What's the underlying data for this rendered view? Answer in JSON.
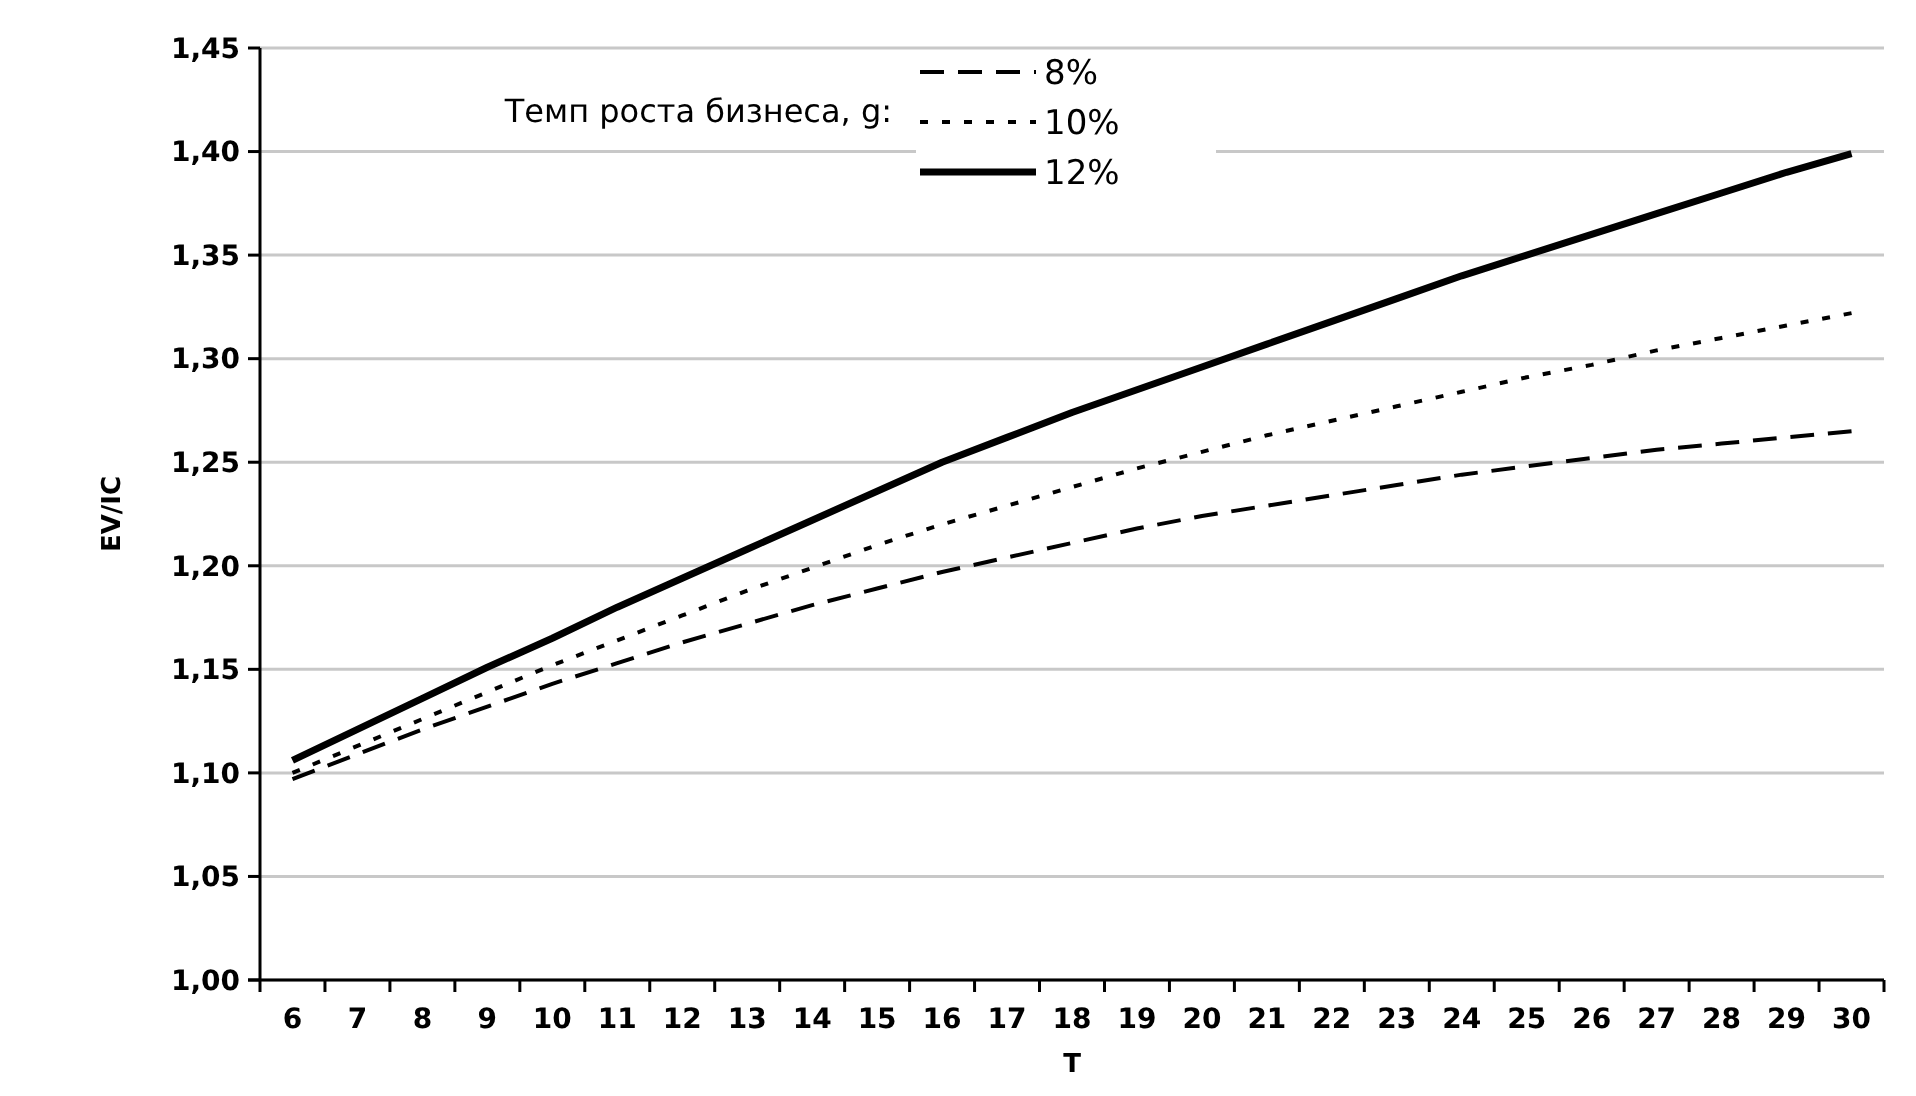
{
  "chart_data": {
    "type": "line",
    "xlabel": "T",
    "ylabel": "EV/IC",
    "legend_title": "Темп роста бизнеса, g:",
    "legend": "top",
    "categories": [
      "6",
      "7",
      "8",
      "9",
      "10",
      "11",
      "12",
      "13",
      "14",
      "15",
      "16",
      "17",
      "18",
      "19",
      "20",
      "21",
      "22",
      "23",
      "24",
      "25",
      "26",
      "27",
      "28",
      "29",
      "30"
    ],
    "series": [
      {
        "name": "8%",
        "color": "#000000",
        "line_style": "dashed",
        "values": [
          1.097,
          1.109,
          1.121,
          1.132,
          1.143,
          1.153,
          1.163,
          1.172,
          1.181,
          1.189,
          1.197,
          1.204,
          1.211,
          1.218,
          1.224,
          1.229,
          1.234,
          1.239,
          1.244,
          1.248,
          1.252,
          1.256,
          1.259,
          1.262,
          1.265
        ]
      },
      {
        "name": "10%",
        "color": "#000000",
        "line_style": "dotted",
        "values": [
          1.1,
          1.113,
          1.126,
          1.139,
          1.152,
          1.164,
          1.176,
          1.188,
          1.199,
          1.21,
          1.22,
          1.229,
          1.238,
          1.247,
          1.255,
          1.263,
          1.27,
          1.277,
          1.284,
          1.291,
          1.297,
          1.304,
          1.31,
          1.316,
          1.322
        ]
      },
      {
        "name": "12%",
        "color": "#000000",
        "line_style": "solid",
        "values": [
          1.106,
          1.121,
          1.136,
          1.151,
          1.165,
          1.18,
          1.194,
          1.208,
          1.222,
          1.236,
          1.25,
          1.262,
          1.274,
          1.285,
          1.296,
          1.307,
          1.318,
          1.329,
          1.34,
          1.35,
          1.36,
          1.37,
          1.38,
          1.39,
          1.399
        ]
      }
    ],
    "ylim": [
      1.0,
      1.45
    ],
    "yticks": [
      {
        "value": 1.0,
        "label": "1,00"
      },
      {
        "value": 1.05,
        "label": "1,05"
      },
      {
        "value": 1.1,
        "label": "1,10"
      },
      {
        "value": 1.15,
        "label": "1,15"
      },
      {
        "value": 1.2,
        "label": "1,20"
      },
      {
        "value": 1.25,
        "label": "1,25"
      },
      {
        "value": 1.3,
        "label": "1,30"
      },
      {
        "value": 1.35,
        "label": "1,35"
      },
      {
        "value": 1.4,
        "label": "1,40"
      },
      {
        "value": 1.45,
        "label": "1,45"
      }
    ],
    "grid": "y",
    "marker": "none"
  }
}
